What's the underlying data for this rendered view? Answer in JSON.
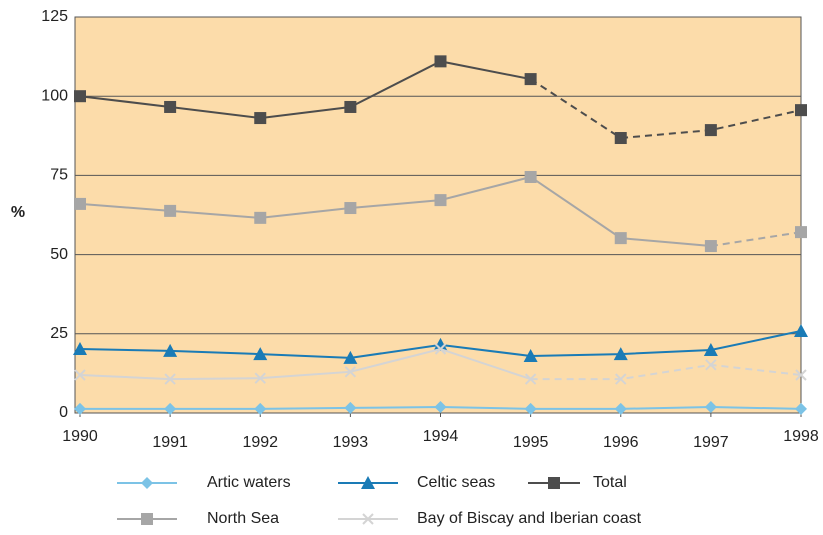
{
  "chart_data": {
    "type": "line",
    "ylabel": "%",
    "x": [
      1990,
      1991,
      1992,
      1993,
      1994,
      1995,
      1996,
      1997,
      1998
    ],
    "xlim": [
      1990,
      1998
    ],
    "xticks": [
      1990,
      1991,
      1992,
      1993,
      1994,
      1995,
      1996,
      1997,
      1998
    ],
    "ylim": [
      0,
      125
    ],
    "yticks": [
      0,
      25,
      50,
      75,
      100,
      125
    ],
    "grid": true,
    "background": "#fcdcaa",
    "legend": "bottom",
    "series": [
      {
        "name": "Artic waters",
        "color": "#7cc3e6",
        "marker": "diamond",
        "values": [
          1.3,
          1.3,
          1.3,
          1.6,
          1.9,
          1.3,
          1.3,
          1.9,
          1.3
        ]
      },
      {
        "name": "Celtic seas",
        "color": "#1a7bb6",
        "marker": "triangle",
        "values": [
          20.2,
          19.6,
          18.6,
          17.4,
          21.5,
          18,
          18.6,
          19.9,
          25.9
        ]
      },
      {
        "name": "Total",
        "color": "#4d4d4d",
        "marker": "square",
        "dash_from": 1995,
        "values": [
          100,
          96.6,
          93.1,
          96.6,
          111,
          105.4,
          86.8,
          89.3,
          95.6
        ]
      },
      {
        "name": "North Sea",
        "color": "#a6a6a6",
        "marker": "square",
        "dash_from": 1997,
        "values": [
          66,
          63.8,
          61.6,
          64.7,
          67.2,
          74.5,
          55.2,
          52.7,
          57.1
        ]
      },
      {
        "name": "Bay of Biscay and Iberian coast",
        "color": "#d4d4d4",
        "marker": "x",
        "dash_from": 1995,
        "values": [
          12,
          10.7,
          11,
          13,
          20.2,
          10.7,
          10.7,
          15.2,
          12
        ]
      }
    ]
  }
}
